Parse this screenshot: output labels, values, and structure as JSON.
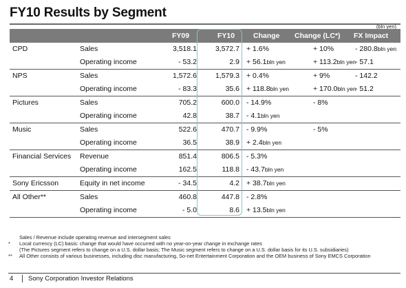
{
  "title": "FY10 Results by Segment",
  "unit_note": "(bln yen)",
  "columns": {
    "fy09": "FY09",
    "fy10": "FY10",
    "change": "Change",
    "change_lc": "Change (LC*)",
    "fx_impact": "FX Impact"
  },
  "groups": [
    {
      "segment": "CPD",
      "rows": [
        {
          "item": "Sales",
          "fy09": "3,518.1",
          "fy10": "3,572.7",
          "change": "+ 1.6%",
          "change_unit": "",
          "change_lc": "+ 10%",
          "change_lc_unit": "",
          "fx": "- 280.8",
          "fx_unit": "bln yen"
        },
        {
          "item": "Operating income",
          "fy09": "- 53.2",
          "fy10": "2.9",
          "change": "+ 56.1",
          "change_unit": "bln yen",
          "change_lc": "+ 113.2",
          "change_lc_unit": "bln yen",
          "fx": "- 57.1",
          "fx_unit": ""
        }
      ]
    },
    {
      "segment": "NPS",
      "rows": [
        {
          "item": "Sales",
          "fy09": "1,572.6",
          "fy10": "1,579.3",
          "change": "+ 0.4%",
          "change_unit": "",
          "change_lc": "+ 9%",
          "change_lc_unit": "",
          "fx": "- 142.2",
          "fx_unit": ""
        },
        {
          "item": "Operating income",
          "fy09": "- 83.3",
          "fy10": "35.6",
          "change": "+ 118.8",
          "change_unit": "bln yen",
          "change_lc": "+ 170.0",
          "change_lc_unit": "bln yen",
          "fx": "- 51.2",
          "fx_unit": ""
        }
      ]
    },
    {
      "segment": "Pictures",
      "rows": [
        {
          "item": "Sales",
          "fy09": "705.2",
          "fy10": "600.0",
          "change": "- 14.9%",
          "change_unit": "",
          "change_lc": "- 8%",
          "change_lc_unit": "",
          "fx": "",
          "fx_unit": ""
        },
        {
          "item": "Operating income",
          "fy09": "42.8",
          "fy10": "38.7",
          "change": "-  4.1",
          "change_unit": "bln yen",
          "change_lc": "",
          "change_lc_unit": "",
          "fx": "",
          "fx_unit": ""
        }
      ]
    },
    {
      "segment": "Music",
      "rows": [
        {
          "item": "Sales",
          "fy09": "522.6",
          "fy10": "470.7",
          "change": "- 9.9%",
          "change_unit": "",
          "change_lc": "- 5%",
          "change_lc_unit": "",
          "fx": "",
          "fx_unit": ""
        },
        {
          "item": "Operating income",
          "fy09": "36.5",
          "fy10": "38.9",
          "change": "+ 2.4",
          "change_unit": "bln yen",
          "change_lc": "",
          "change_lc_unit": "",
          "fx": "",
          "fx_unit": ""
        }
      ]
    },
    {
      "segment": "Financial Services",
      "rows": [
        {
          "item": "Revenue",
          "fy09": "851.4",
          "fy10": "806.5",
          "change": "- 5.3%",
          "change_unit": "",
          "change_lc": "",
          "change_lc_unit": "",
          "fx": "",
          "fx_unit": ""
        },
        {
          "item": "Operating income",
          "fy09": "162.5",
          "fy10": "118.8",
          "change": "- 43.7",
          "change_unit": "bln yen",
          "change_lc": "",
          "change_lc_unit": "",
          "fx": "",
          "fx_unit": ""
        }
      ]
    },
    {
      "segment": "Sony Ericsson",
      "rows": [
        {
          "item": "Equity in net income",
          "fy09": "- 34.5",
          "fy10": "4.2",
          "change": "+ 38.7",
          "change_unit": "bln yen",
          "change_lc": "",
          "change_lc_unit": "",
          "fx": "",
          "fx_unit": ""
        }
      ]
    },
    {
      "segment": "All Other**",
      "rows": [
        {
          "item": "Sales",
          "fy09": "460.8",
          "fy10": "447.8",
          "change": "- 2.8%",
          "change_unit": "",
          "change_lc": "",
          "change_lc_unit": "",
          "fx": "",
          "fx_unit": ""
        },
        {
          "item": "Operating income",
          "fy09": "- 5.0",
          "fy10": "8.6",
          "change": "+ 13.5",
          "change_unit": "bln yen",
          "change_lc": "",
          "change_lc_unit": "",
          "fx": "",
          "fx_unit": ""
        }
      ]
    }
  ],
  "notes": {
    "line1": "Sales / Revenue include operating revenue and intersegment sales",
    "mark2": "*",
    "line2": "Local currency (LC) basis: change that would have occurred with no year-on-year change in exchange rates",
    "line2b": "(The Pictures segment refers to change on a U.S. dollar basis; The Music segment refers to change on a U.S. dollar basis for its U.S. subsidiaries)",
    "mark3": "**",
    "line3": "All Other consists of various businesses, including disc manufacturing, So-net Entertainment Corporation and the OEM business of Sony EMCS Corporation"
  },
  "footer": {
    "page": "4",
    "text": "Sony Corporation Investor Relations"
  }
}
